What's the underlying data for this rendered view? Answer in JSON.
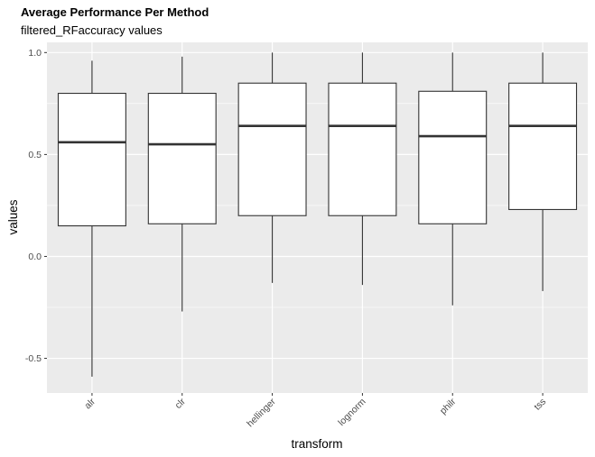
{
  "chart_data": {
    "type": "boxplot",
    "title": "Average Performance Per Method",
    "subtitle": "filtered_RFaccuracy values",
    "xlabel": "transform",
    "ylabel": "values",
    "ylim": [
      -0.67,
      1.05
    ],
    "yticks": [
      -0.5,
      0.0,
      0.5,
      1.0
    ],
    "ytick_labels": [
      "-0.5",
      "0.0",
      "0.5",
      "1.0"
    ],
    "grid": true,
    "categories": [
      "alr",
      "clr",
      "hellinger",
      "lognorm",
      "philr",
      "tss"
    ],
    "boxes": [
      {
        "category": "alr",
        "min": -0.59,
        "q1": 0.15,
        "median": 0.56,
        "q3": 0.8,
        "max": 0.96
      },
      {
        "category": "clr",
        "min": -0.27,
        "q1": 0.16,
        "median": 0.55,
        "q3": 0.8,
        "max": 0.98
      },
      {
        "category": "hellinger",
        "min": -0.13,
        "q1": 0.2,
        "median": 0.64,
        "q3": 0.85,
        "max": 1.0
      },
      {
        "category": "lognorm",
        "min": -0.14,
        "q1": 0.2,
        "median": 0.64,
        "q3": 0.85,
        "max": 1.0
      },
      {
        "category": "philr",
        "min": -0.24,
        "q1": 0.16,
        "median": 0.59,
        "q3": 0.81,
        "max": 1.0
      },
      {
        "category": "tss",
        "min": -0.17,
        "q1": 0.23,
        "median": 0.64,
        "q3": 0.85,
        "max": 1.0
      }
    ]
  }
}
